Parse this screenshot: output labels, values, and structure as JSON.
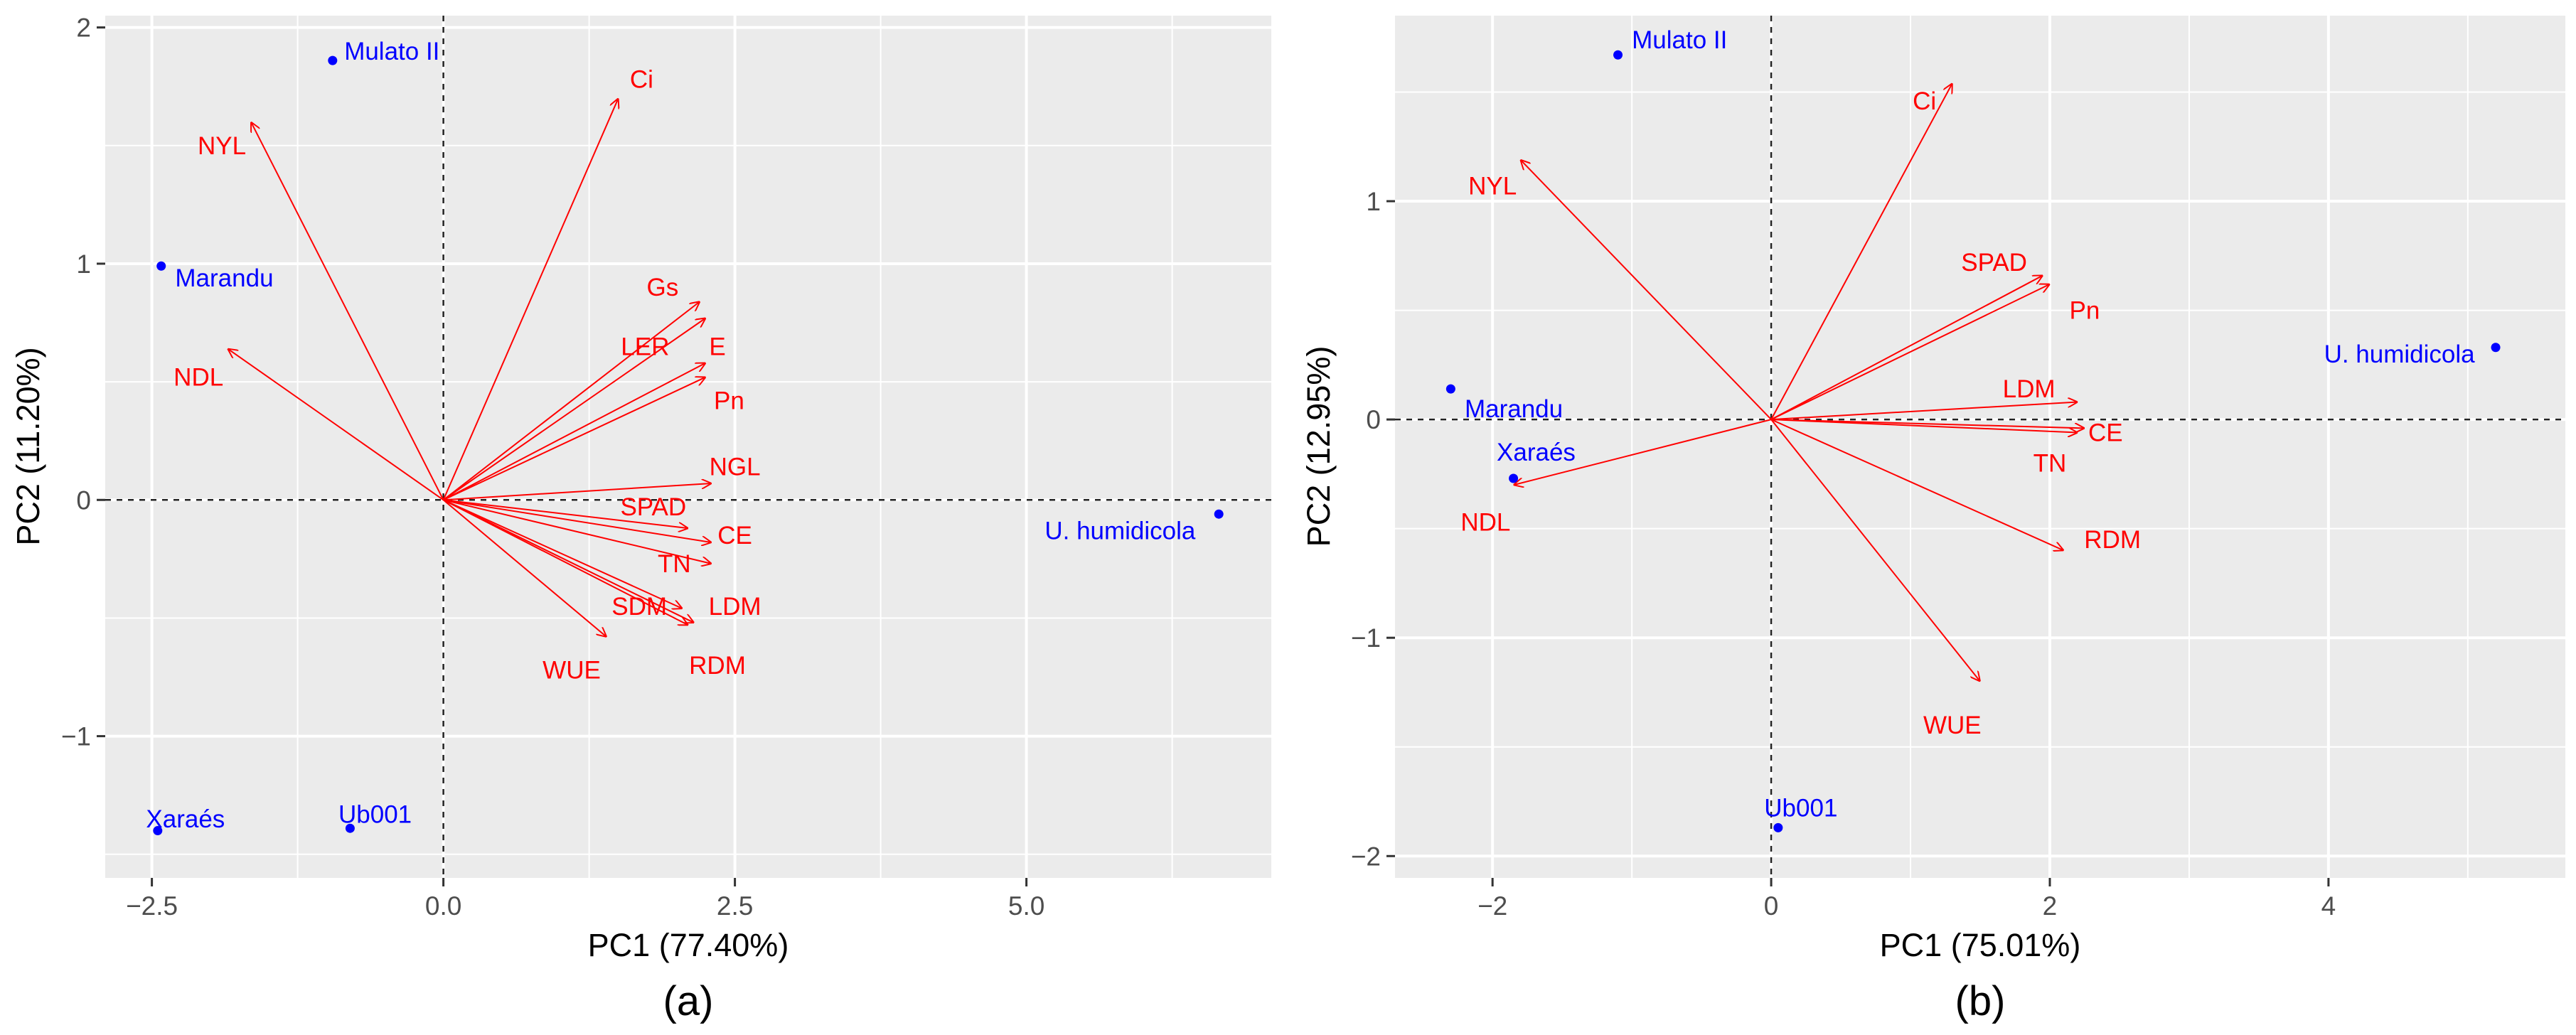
{
  "colors": {
    "variable": "#ff0000",
    "genotype": "#0000ff",
    "panel": "#ebebeb",
    "grid": "#ffffff"
  },
  "chart_data": [
    {
      "type": "biplot",
      "caption": "(a)",
      "xlabel": "PC1 (77.40%)",
      "ylabel": "PC2 (11.20%)",
      "xlim": [
        -2.9,
        7.1
      ],
      "ylim": [
        -1.6,
        2.05
      ],
      "xticks": [
        -2.5,
        0.0,
        2.5,
        5.0
      ],
      "xtick_labels": [
        "−2.5",
        "0.0",
        "2.5",
        "5.0"
      ],
      "yticks": [
        -1,
        0,
        1,
        2
      ],
      "ytick_labels": [
        "−1",
        "0",
        "1",
        "2"
      ],
      "variables": [
        {
          "name": "Ci",
          "x": 1.5,
          "y": 1.7,
          "lx": 1.7,
          "ly": 1.78
        },
        {
          "name": "NYL",
          "x": -1.65,
          "y": 1.6,
          "lx": -1.9,
          "ly": 1.5
        },
        {
          "name": "NDL",
          "x": -1.85,
          "y": 0.64,
          "lx": -2.1,
          "ly": 0.52
        },
        {
          "name": "Gs",
          "x": 2.2,
          "y": 0.84,
          "lx": 1.88,
          "ly": 0.9
        },
        {
          "name": "LER",
          "x": 2.25,
          "y": 0.77,
          "lx": 1.73,
          "ly": 0.65
        },
        {
          "name": "E",
          "x": 2.25,
          "y": 0.58,
          "lx": 2.35,
          "ly": 0.65
        },
        {
          "name": "Pn",
          "x": 2.25,
          "y": 0.52,
          "lx": 2.45,
          "ly": 0.42
        },
        {
          "name": "NGL",
          "x": 2.3,
          "y": 0.07,
          "lx": 2.5,
          "ly": 0.14
        },
        {
          "name": "SPAD",
          "x": 2.1,
          "y": -0.12,
          "lx": 1.8,
          "ly": -0.03
        },
        {
          "name": "CE",
          "x": 2.3,
          "y": -0.18,
          "lx": 2.5,
          "ly": -0.15
        },
        {
          "name": "TN",
          "x": 2.3,
          "y": -0.27,
          "lx": 1.98,
          "ly": -0.27
        },
        {
          "name": "SDM",
          "x": 2.05,
          "y": -0.46,
          "lx": 1.68,
          "ly": -0.45
        },
        {
          "name": "LDM",
          "x": 2.1,
          "y": -0.53,
          "lx": 2.5,
          "ly": -0.45
        },
        {
          "name": "WUE",
          "x": 1.4,
          "y": -0.58,
          "lx": 1.1,
          "ly": -0.72
        },
        {
          "name": "RDM",
          "x": 2.15,
          "y": -0.52,
          "lx": 2.35,
          "ly": -0.7
        }
      ],
      "genotypes": [
        {
          "name": "Mulato II",
          "x": -0.95,
          "y": 1.86,
          "lx": -0.85,
          "ly": 1.9,
          "anchor": "start"
        },
        {
          "name": "Marandu",
          "x": -2.42,
          "y": 0.99,
          "lx": -2.3,
          "ly": 0.94,
          "anchor": "start"
        },
        {
          "name": "U. humidicola",
          "x": 6.65,
          "y": -0.06,
          "lx": 6.45,
          "ly": -0.13,
          "anchor": "end"
        },
        {
          "name": "Xaraés",
          "x": -2.45,
          "y": -1.4,
          "lx": -2.55,
          "ly": -1.35,
          "anchor": "start"
        },
        {
          "name": "Ub001",
          "x": -0.8,
          "y": -1.39,
          "lx": -0.9,
          "ly": -1.33,
          "anchor": "start"
        }
      ]
    },
    {
      "type": "biplot",
      "caption": "(b)",
      "xlabel": "PC1 (75.01%)",
      "ylabel": "PC2 (12.95%)",
      "xlim": [
        -2.7,
        5.7
      ],
      "ylim": [
        -2.1,
        1.85
      ],
      "xticks": [
        -2,
        0,
        2,
        4
      ],
      "xtick_labels": [
        "−2",
        "0",
        "2",
        "4"
      ],
      "yticks": [
        -2,
        -1,
        0,
        1
      ],
      "ytick_labels": [
        "−2",
        "−1",
        "0",
        "1"
      ],
      "variables": [
        {
          "name": "Ci",
          "x": 1.3,
          "y": 1.54,
          "lx": 1.1,
          "ly": 1.46
        },
        {
          "name": "NYL",
          "x": -1.8,
          "y": 1.19,
          "lx": -2.0,
          "ly": 1.07
        },
        {
          "name": "SPAD",
          "x": 1.95,
          "y": 0.66,
          "lx": 1.6,
          "ly": 0.72
        },
        {
          "name": "Pn",
          "x": 2.0,
          "y": 0.62,
          "lx": 2.25,
          "ly": 0.5
        },
        {
          "name": "LDM",
          "x": 2.2,
          "y": 0.08,
          "lx": 1.85,
          "ly": 0.14
        },
        {
          "name": "CE",
          "x": 2.25,
          "y": -0.04,
          "lx": 2.4,
          "ly": -0.06
        },
        {
          "name": "TN",
          "x": 2.2,
          "y": -0.06,
          "lx": 2.0,
          "ly": -0.2
        },
        {
          "name": "NDL",
          "x": -1.85,
          "y": -0.3,
          "lx": -2.05,
          "ly": -0.47
        },
        {
          "name": "RDM",
          "x": 2.1,
          "y": -0.6,
          "lx": 2.45,
          "ly": -0.55
        },
        {
          "name": "WUE",
          "x": 1.5,
          "y": -1.2,
          "lx": 1.3,
          "ly": -1.4
        }
      ],
      "genotypes": [
        {
          "name": "Mulato II",
          "x": -1.1,
          "y": 1.67,
          "lx": -1.0,
          "ly": 1.74,
          "anchor": "start"
        },
        {
          "name": "U. humidicola",
          "x": 5.2,
          "y": 0.33,
          "lx": 5.05,
          "ly": 0.3,
          "anchor": "end"
        },
        {
          "name": "Marandu",
          "x": -2.3,
          "y": 0.14,
          "lx": -2.2,
          "ly": 0.05,
          "anchor": "start"
        },
        {
          "name": "Xaraés",
          "x": -1.85,
          "y": -0.27,
          "lx": -1.97,
          "ly": -0.15,
          "anchor": "start"
        },
        {
          "name": "Ub001",
          "x": 0.05,
          "y": -1.87,
          "lx": -0.05,
          "ly": -1.78,
          "anchor": "start"
        }
      ]
    }
  ]
}
